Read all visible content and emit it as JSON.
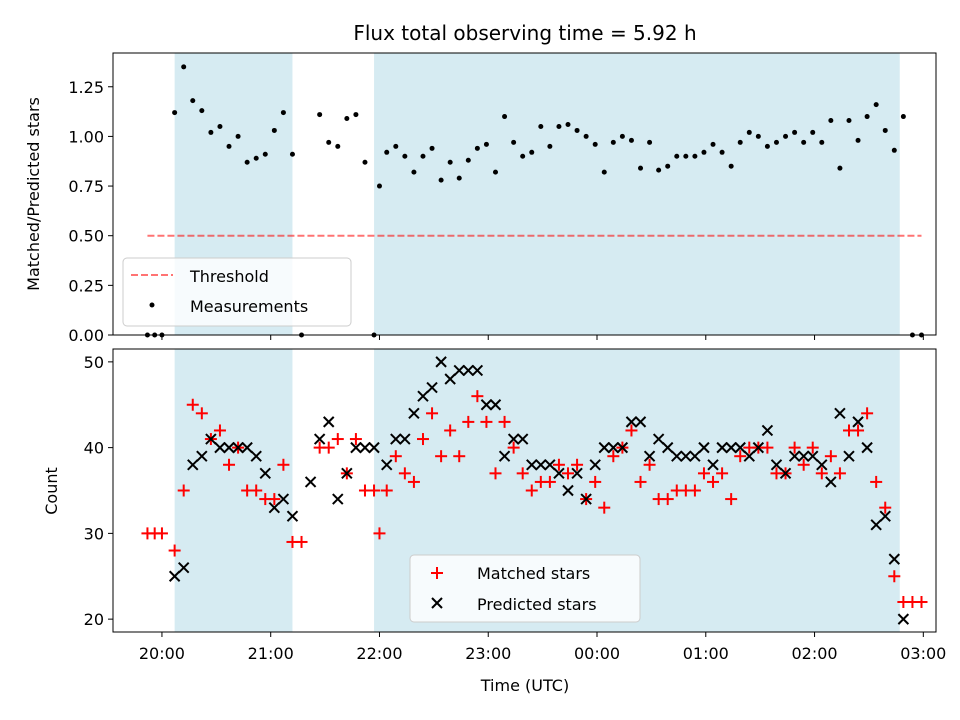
{
  "title": "Flux total observing time = 5.92 h",
  "xlabel": "Time (UTC)",
  "colors": {
    "shade": "#add8e6",
    "threshold": "#ff0000",
    "matched": "#ff0000",
    "predicted": "#000000",
    "measurement": "#000000"
  },
  "chart_data": [
    {
      "type": "scatter",
      "panel": "top",
      "ylabel": "Matched/Predicted stars",
      "ylim": [
        0,
        1.42
      ],
      "yticks": [
        0,
        0.25,
        0.5,
        0.75,
        1.0,
        1.25
      ],
      "ytick_labels": [
        "0.00",
        "0.25",
        "0.50",
        "0.75",
        "1.00",
        "1.25"
      ],
      "xlim": [
        "19:33",
        "03:07"
      ],
      "legend": {
        "placement": "lower-left",
        "entries": [
          "Threshold",
          "Measurements"
        ]
      },
      "threshold": {
        "name": "Threshold",
        "value": 0.5,
        "x": [
          "19:52",
          "02:59"
        ],
        "style": "dashed"
      },
      "shaded_intervals": [
        [
          "20:07",
          "21:12"
        ],
        [
          "21:57",
          "02:47"
        ]
      ],
      "series": [
        {
          "name": "Measurements",
          "marker": "dot",
          "points": [
            [
              "19:52",
              0.0
            ],
            [
              "19:56",
              0.0
            ],
            [
              "20:00",
              0.0
            ],
            [
              "20:07",
              1.12
            ],
            [
              "20:12",
              1.35
            ],
            [
              "20:17",
              1.18
            ],
            [
              "20:22",
              1.13
            ],
            [
              "20:27",
              1.02
            ],
            [
              "20:32",
              1.05
            ],
            [
              "20:37",
              0.95
            ],
            [
              "20:42",
              1.0
            ],
            [
              "20:47",
              0.87
            ],
            [
              "20:52",
              0.89
            ],
            [
              "20:57",
              0.91
            ],
            [
              "21:02",
              1.03
            ],
            [
              "21:07",
              1.12
            ],
            [
              "21:12",
              0.91
            ],
            [
              "21:17",
              0.0
            ],
            [
              "21:27",
              1.11
            ],
            [
              "21:32",
              0.97
            ],
            [
              "21:37",
              0.95
            ],
            [
              "21:42",
              1.09
            ],
            [
              "21:47",
              1.11
            ],
            [
              "21:52",
              0.87
            ],
            [
              "21:57",
              0.0
            ],
            [
              "22:00",
              0.75
            ],
            [
              "22:04",
              0.92
            ],
            [
              "22:09",
              0.95
            ],
            [
              "22:14",
              0.9
            ],
            [
              "22:19",
              0.82
            ],
            [
              "22:24",
              0.9
            ],
            [
              "22:29",
              0.94
            ],
            [
              "22:34",
              0.78
            ],
            [
              "22:39",
              0.87
            ],
            [
              "22:44",
              0.79
            ],
            [
              "22:49",
              0.88
            ],
            [
              "22:54",
              0.94
            ],
            [
              "22:59",
              0.96
            ],
            [
              "23:04",
              0.82
            ],
            [
              "23:09",
              1.1
            ],
            [
              "23:14",
              0.97
            ],
            [
              "23:19",
              0.9
            ],
            [
              "23:24",
              0.92
            ],
            [
              "23:29",
              1.05
            ],
            [
              "23:34",
              0.95
            ],
            [
              "23:39",
              1.05
            ],
            [
              "23:44",
              1.06
            ],
            [
              "23:49",
              1.03
            ],
            [
              "23:54",
              1.0
            ],
            [
              "23:59",
              0.96
            ],
            [
              "00:04",
              0.82
            ],
            [
              "00:09",
              0.97
            ],
            [
              "00:14",
              1.0
            ],
            [
              "00:19",
              0.98
            ],
            [
              "00:24",
              0.84
            ],
            [
              "00:29",
              0.97
            ],
            [
              "00:34",
              0.83
            ],
            [
              "00:39",
              0.85
            ],
            [
              "00:44",
              0.9
            ],
            [
              "00:49",
              0.9
            ],
            [
              "00:54",
              0.9
            ],
            [
              "00:59",
              0.92
            ],
            [
              "01:04",
              0.96
            ],
            [
              "01:09",
              0.92
            ],
            [
              "01:14",
              0.85
            ],
            [
              "01:19",
              0.97
            ],
            [
              "01:24",
              1.02
            ],
            [
              "01:29",
              1.0
            ],
            [
              "01:34",
              0.95
            ],
            [
              "01:39",
              0.97
            ],
            [
              "01:44",
              1.0
            ],
            [
              "01:49",
              1.02
            ],
            [
              "01:54",
              0.97
            ],
            [
              "01:59",
              1.02
            ],
            [
              "02:04",
              0.97
            ],
            [
              "02:09",
              1.08
            ],
            [
              "02:14",
              0.84
            ],
            [
              "02:19",
              1.08
            ],
            [
              "02:24",
              0.98
            ],
            [
              "02:29",
              1.1
            ],
            [
              "02:34",
              1.16
            ],
            [
              "02:39",
              1.03
            ],
            [
              "02:44",
              0.93
            ],
            [
              "02:49",
              1.1
            ],
            [
              "02:54",
              0.0
            ],
            [
              "02:59",
              0.0
            ]
          ]
        }
      ]
    },
    {
      "type": "scatter",
      "panel": "bottom",
      "ylabel": "Count",
      "ylim": [
        18.5,
        51.5
      ],
      "yticks": [
        20,
        30,
        40,
        50
      ],
      "ytick_labels": [
        "20",
        "30",
        "40",
        "50"
      ],
      "xlim": [
        "19:33",
        "03:07"
      ],
      "xticks": [
        "20:00",
        "21:00",
        "22:00",
        "23:00",
        "00:00",
        "01:00",
        "02:00",
        "03:00"
      ],
      "legend": {
        "placement": "lower-center",
        "entries": [
          "Matched stars",
          "Predicted stars"
        ]
      },
      "shaded_intervals": [
        [
          "20:07",
          "21:12"
        ],
        [
          "21:57",
          "02:47"
        ]
      ],
      "series": [
        {
          "name": "Matched stars",
          "marker": "plus",
          "points": [
            [
              "19:52",
              30
            ],
            [
              "19:56",
              30
            ],
            [
              "20:00",
              30
            ],
            [
              "20:07",
              28
            ],
            [
              "20:12",
              35
            ],
            [
              "20:17",
              45
            ],
            [
              "20:22",
              44
            ],
            [
              "20:27",
              41
            ],
            [
              "20:32",
              42
            ],
            [
              "20:37",
              38
            ],
            [
              "20:42",
              40
            ],
            [
              "20:47",
              35
            ],
            [
              "20:52",
              35
            ],
            [
              "20:57",
              34
            ],
            [
              "21:02",
              34
            ],
            [
              "21:07",
              38
            ],
            [
              "21:12",
              29
            ],
            [
              "21:17",
              29
            ],
            [
              "21:27",
              40
            ],
            [
              "21:32",
              40
            ],
            [
              "21:37",
              41
            ],
            [
              "21:42",
              37
            ],
            [
              "21:47",
              41
            ],
            [
              "21:52",
              35
            ],
            [
              "21:57",
              35
            ],
            [
              "22:00",
              30
            ],
            [
              "22:04",
              35
            ],
            [
              "22:09",
              39
            ],
            [
              "22:14",
              37
            ],
            [
              "22:19",
              36
            ],
            [
              "22:24",
              41
            ],
            [
              "22:29",
              44
            ],
            [
              "22:34",
              39
            ],
            [
              "22:39",
              42
            ],
            [
              "22:44",
              39
            ],
            [
              "22:49",
              43
            ],
            [
              "22:54",
              46
            ],
            [
              "22:59",
              43
            ],
            [
              "23:04",
              37
            ],
            [
              "23:09",
              43
            ],
            [
              "23:14",
              40
            ],
            [
              "23:19",
              37
            ],
            [
              "23:24",
              35
            ],
            [
              "23:29",
              36
            ],
            [
              "23:34",
              36
            ],
            [
              "23:39",
              38
            ],
            [
              "23:44",
              37
            ],
            [
              "23:49",
              38
            ],
            [
              "23:54",
              34
            ],
            [
              "23:59",
              36
            ],
            [
              "00:04",
              33
            ],
            [
              "00:09",
              39
            ],
            [
              "00:14",
              40
            ],
            [
              "00:19",
              42
            ],
            [
              "00:24",
              36
            ],
            [
              "00:29",
              38
            ],
            [
              "00:34",
              34
            ],
            [
              "00:39",
              34
            ],
            [
              "00:44",
              35
            ],
            [
              "00:49",
              35
            ],
            [
              "00:54",
              35
            ],
            [
              "00:59",
              37
            ],
            [
              "01:04",
              36
            ],
            [
              "01:09",
              37
            ],
            [
              "01:14",
              34
            ],
            [
              "01:19",
              39
            ],
            [
              "01:24",
              40
            ],
            [
              "01:29",
              40
            ],
            [
              "01:34",
              40
            ],
            [
              "01:39",
              37
            ],
            [
              "01:44",
              37
            ],
            [
              "01:49",
              40
            ],
            [
              "01:54",
              38
            ],
            [
              "01:59",
              40
            ],
            [
              "02:04",
              37
            ],
            [
              "02:09",
              39
            ],
            [
              "02:14",
              37
            ],
            [
              "02:19",
              42
            ],
            [
              "02:24",
              42
            ],
            [
              "02:29",
              44
            ],
            [
              "02:34",
              36
            ],
            [
              "02:39",
              33
            ],
            [
              "02:44",
              25
            ],
            [
              "02:49",
              22
            ],
            [
              "02:54",
              22
            ],
            [
              "02:59",
              22
            ]
          ]
        },
        {
          "name": "Predicted stars",
          "marker": "x",
          "points": [
            [
              "20:07",
              25
            ],
            [
              "20:12",
              26
            ],
            [
              "20:17",
              38
            ],
            [
              "20:22",
              39
            ],
            [
              "20:27",
              41
            ],
            [
              "20:32",
              40
            ],
            [
              "20:37",
              40
            ],
            [
              "20:42",
              40
            ],
            [
              "20:47",
              40
            ],
            [
              "20:52",
              39
            ],
            [
              "20:57",
              37
            ],
            [
              "21:02",
              33
            ],
            [
              "21:07",
              34
            ],
            [
              "21:12",
              32
            ],
            [
              "21:22",
              36
            ],
            [
              "21:27",
              41
            ],
            [
              "21:32",
              43
            ],
            [
              "21:37",
              34
            ],
            [
              "21:42",
              37
            ],
            [
              "21:47",
              40
            ],
            [
              "21:52",
              40
            ],
            [
              "21:57",
              40
            ],
            [
              "22:04",
              38
            ],
            [
              "22:09",
              41
            ],
            [
              "22:14",
              41
            ],
            [
              "22:19",
              44
            ],
            [
              "22:24",
              46
            ],
            [
              "22:29",
              47
            ],
            [
              "22:34",
              50
            ],
            [
              "22:39",
              48
            ],
            [
              "22:44",
              49
            ],
            [
              "22:49",
              49
            ],
            [
              "22:54",
              49
            ],
            [
              "22:59",
              45
            ],
            [
              "23:04",
              45
            ],
            [
              "23:09",
              39
            ],
            [
              "23:14",
              41
            ],
            [
              "23:19",
              41
            ],
            [
              "23:24",
              38
            ],
            [
              "23:29",
              38
            ],
            [
              "23:34",
              38
            ],
            [
              "23:39",
              37
            ],
            [
              "23:44",
              35
            ],
            [
              "23:49",
              37
            ],
            [
              "23:54",
              34
            ],
            [
              "23:59",
              38
            ],
            [
              "00:04",
              40
            ],
            [
              "00:09",
              40
            ],
            [
              "00:14",
              40
            ],
            [
              "00:19",
              43
            ],
            [
              "00:24",
              43
            ],
            [
              "00:29",
              39
            ],
            [
              "00:34",
              41
            ],
            [
              "00:39",
              40
            ],
            [
              "00:44",
              39
            ],
            [
              "00:49",
              39
            ],
            [
              "00:54",
              39
            ],
            [
              "00:59",
              40
            ],
            [
              "01:04",
              38
            ],
            [
              "01:09",
              40
            ],
            [
              "01:14",
              40
            ],
            [
              "01:19",
              40
            ],
            [
              "01:24",
              39
            ],
            [
              "01:29",
              40
            ],
            [
              "01:34",
              42
            ],
            [
              "01:39",
              38
            ],
            [
              "01:44",
              37
            ],
            [
              "01:49",
              39
            ],
            [
              "01:54",
              39
            ],
            [
              "01:59",
              39
            ],
            [
              "02:04",
              38
            ],
            [
              "02:09",
              36
            ],
            [
              "02:14",
              44
            ],
            [
              "02:19",
              39
            ],
            [
              "02:24",
              43
            ],
            [
              "02:29",
              40
            ],
            [
              "02:34",
              31
            ],
            [
              "02:39",
              32
            ],
            [
              "02:44",
              27
            ],
            [
              "02:49",
              20
            ]
          ]
        }
      ]
    }
  ]
}
